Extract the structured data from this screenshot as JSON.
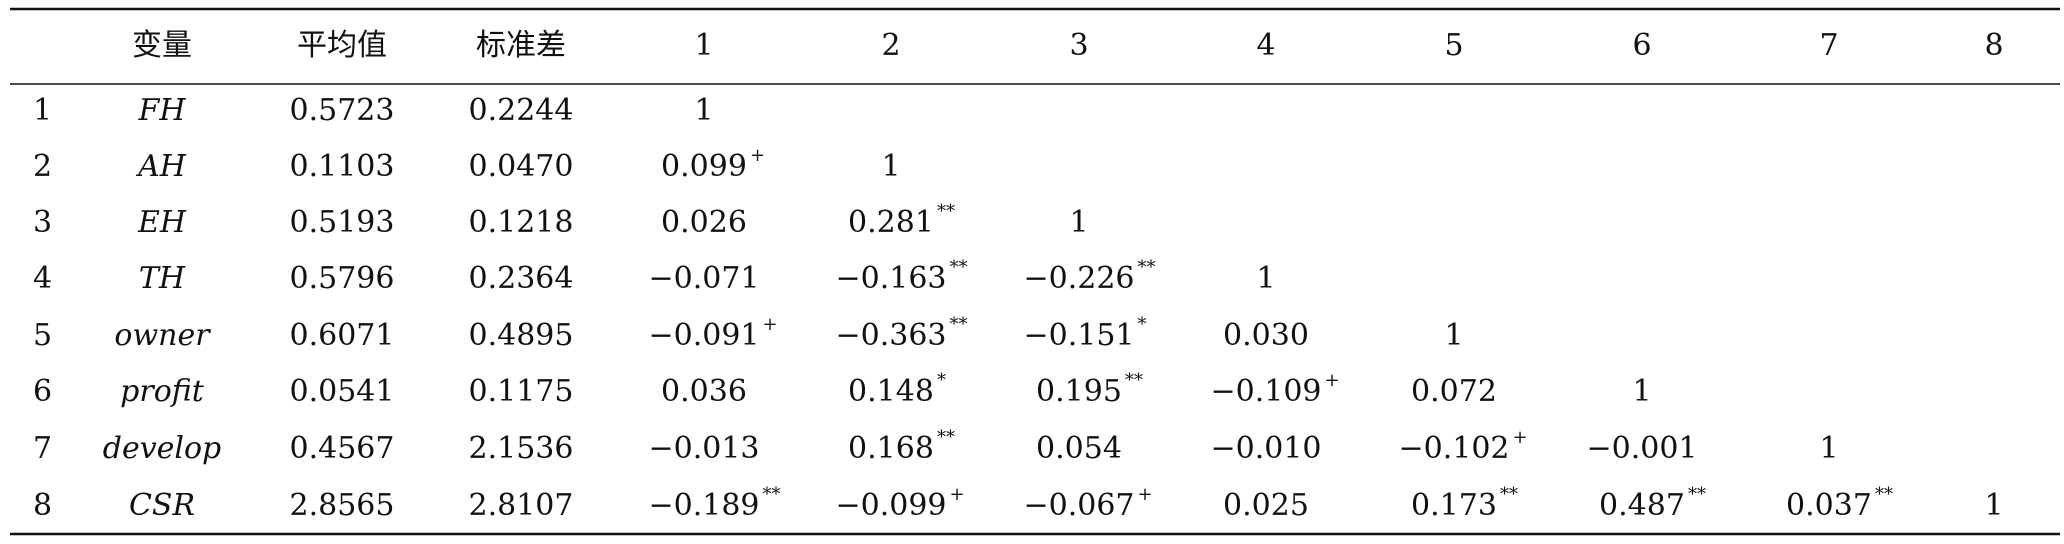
{
  "table": {
    "header": [
      "变量",
      "平均值",
      "标准差",
      "1",
      "2",
      "3",
      "4",
      "5",
      "6",
      "7",
      "8"
    ],
    "rows": [
      {
        "index": "1",
        "variable": "FH",
        "mean": "0.5723",
        "sd": "0.2244",
        "correlations": [
          {
            "value": "1"
          }
        ]
      },
      {
        "index": "2",
        "variable": "AH",
        "mean": "0.1103",
        "sd": "0.0470",
        "correlations": [
          {
            "value": "0.099",
            "sig": "+"
          },
          {
            "value": "1"
          }
        ]
      },
      {
        "index": "3",
        "variable": "EH",
        "mean": "0.5193",
        "sd": "0.1218",
        "correlations": [
          {
            "value": "0.026"
          },
          {
            "value": "0.281",
            "sig": "**"
          },
          {
            "value": "1"
          }
        ]
      },
      {
        "index": "4",
        "variable": "TH",
        "mean": "0.5796",
        "sd": "0.2364",
        "correlations": [
          {
            "value": "−0.071"
          },
          {
            "value": "−0.163",
            "sig": "**"
          },
          {
            "value": "−0.226",
            "sig": "**"
          },
          {
            "value": "1"
          }
        ]
      },
      {
        "index": "5",
        "variable": "owner",
        "mean": "0.6071",
        "sd": "0.4895",
        "correlations": [
          {
            "value": "−0.091",
            "sig": "+"
          },
          {
            "value": "−0.363",
            "sig": "**"
          },
          {
            "value": "−0.151",
            "sig": "*"
          },
          {
            "value": "0.030"
          },
          {
            "value": "1"
          }
        ]
      },
      {
        "index": "6",
        "variable": "profit",
        "mean": "0.0541",
        "sd": "0.1175",
        "correlations": [
          {
            "value": "0.036"
          },
          {
            "value": "0.148",
            "sig": "*"
          },
          {
            "value": "0.195",
            "sig": "**"
          },
          {
            "value": "−0.109",
            "sig": "+"
          },
          {
            "value": "0.072"
          },
          {
            "value": "1"
          }
        ]
      },
      {
        "index": "7",
        "variable": "develop",
        "mean": "0.4567",
        "sd": "2.1536",
        "correlations": [
          {
            "value": "−0.013"
          },
          {
            "value": "0.168",
            "sig": "**"
          },
          {
            "value": "0.054"
          },
          {
            "value": "−0.010"
          },
          {
            "value": "−0.102",
            "sig": "+"
          },
          {
            "value": "−0.001"
          },
          {
            "value": "1"
          }
        ]
      },
      {
        "index": "8",
        "variable": "CSR",
        "mean": "2.8565",
        "sd": "2.8107",
        "correlations": [
          {
            "value": "−0.189",
            "sig": "**"
          },
          {
            "value": "−0.099",
            "sig": "+"
          },
          {
            "value": "−0.067",
            "sig": "+"
          },
          {
            "value": "0.025"
          },
          {
            "value": "0.173",
            "sig": "**"
          },
          {
            "value": "0.487",
            "sig": "**"
          },
          {
            "value": "0.037",
            "sig": "**"
          },
          {
            "value": "1"
          }
        ]
      }
    ]
  }
}
